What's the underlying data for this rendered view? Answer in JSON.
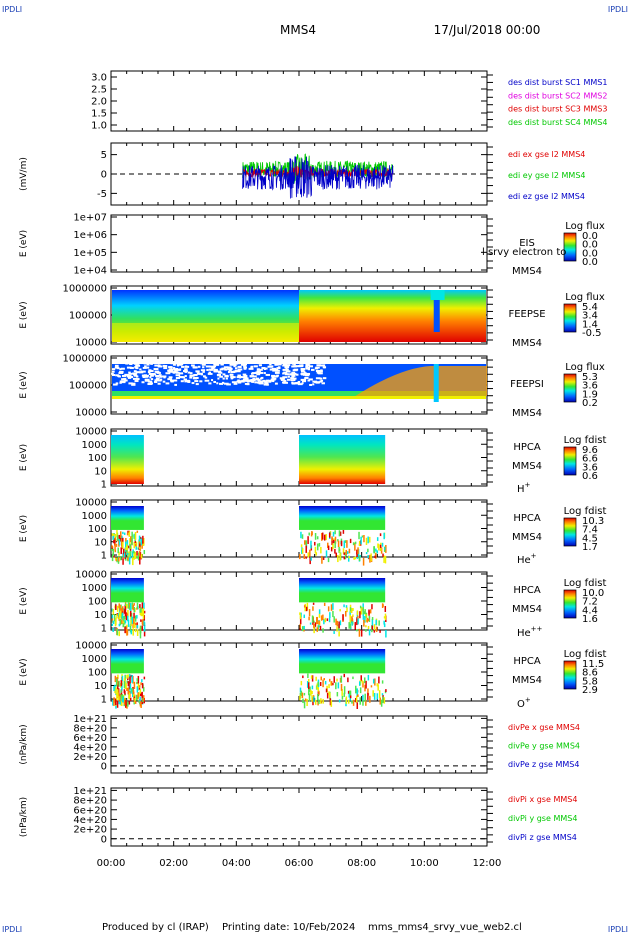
{
  "header": {
    "title": "MMS4",
    "datetime": "17/Jul/2018 00:00",
    "corner_label": "IPDLI"
  },
  "colors": {
    "red": "#e00000",
    "green": "#00c800",
    "blue": "#0000c8",
    "magenta": "#e000e0"
  },
  "footer": {
    "produced_by": "Produced by cl (IRAP)",
    "printing_date": "Printing date: 10/Feb/2024",
    "filename": "mms_mms4_srvy_vue_web2.cl"
  },
  "chart_data": {
    "type": "multi-panel-time-series",
    "x_range": [
      "00:00",
      "12:00"
    ],
    "x_tick_labels": [
      "00:00",
      "02:00",
      "04:00",
      "06:00",
      "08:00",
      "10:00",
      "12:00"
    ],
    "panels": [
      {
        "id": "des",
        "type": "line",
        "y_range": [
          0.75,
          3.25
        ],
        "y_ticks": [
          "3.0",
          "2.5",
          "2.0",
          "1.5",
          "1.0"
        ],
        "legend": [
          {
            "text": "des dist burst SC1 MMS1",
            "color": "#0000c8"
          },
          {
            "text": "des dist burst SC2 MMS2",
            "color": "#e000e0"
          },
          {
            "text": "des dist burst SC3 MMS3",
            "color": "#e00000"
          },
          {
            "text": "des dist burst SC4 MMS4",
            "color": "#00c800"
          }
        ]
      },
      {
        "id": "edi",
        "type": "line",
        "ylabel": "(mV/m)",
        "y_range": [
          -8,
          8
        ],
        "y_ticks": [
          "5",
          "0",
          "-5"
        ],
        "data_range_hours": [
          4.2,
          9.0
        ],
        "legend": [
          {
            "text": "edi ex gse l2 MMS4",
            "color": "#e00000"
          },
          {
            "text": "edi ey gse l2 MMS4",
            "color": "#00c800"
          },
          {
            "text": "edi ez gse l2 MMS4",
            "color": "#0000c8"
          }
        ]
      },
      {
        "id": "eis",
        "type": "spectrogram",
        "ylabel": "E (eV)",
        "y_ticks": [
          "1e+07",
          "1e+06",
          "1e+05",
          "1e+04"
        ],
        "labels": [
          "EIS",
          "MMS4"
        ],
        "overlay_text": "l srvy electron to",
        "colorbar_title": "Log flux",
        "colorbar_ticks": [
          "0.0",
          "0.0",
          "0.0",
          "0.0"
        ]
      },
      {
        "id": "feepse",
        "type": "spectrogram",
        "ylabel": "E (eV)",
        "y_ticks": [
          "1000000",
          "100000",
          "10000"
        ],
        "labels": [
          "FEEPSE",
          "MMS4"
        ],
        "colorbar_title": "Log flux",
        "colorbar_ticks": [
          "5.4",
          "3.4",
          "1.4",
          "-0.5"
        ]
      },
      {
        "id": "feepsi",
        "type": "spectrogram",
        "ylabel": "E (eV)",
        "y_ticks": [
          "1000000",
          "100000",
          "10000"
        ],
        "labels": [
          "FEEPSI",
          "MMS4"
        ],
        "colorbar_title": "Log flux",
        "colorbar_ticks": [
          "5.3",
          "3.6",
          "1.9",
          "0.2"
        ]
      },
      {
        "id": "hpca_h",
        "type": "spectrogram",
        "ylabel": "E (eV)",
        "y_ticks": [
          "10000",
          "1000",
          "100",
          "10",
          "1"
        ],
        "labels": [
          "HPCA",
          "MMS4"
        ],
        "species": "H",
        "species_sup": "+",
        "colorbar_title": "Log fdist",
        "colorbar_ticks": [
          "9.6",
          "6.6",
          "3.6",
          "0.6"
        ]
      },
      {
        "id": "hpca_he",
        "type": "spectrogram",
        "ylabel": "E (eV)",
        "y_ticks": [
          "10000",
          "1000",
          "100",
          "10",
          "1"
        ],
        "labels": [
          "HPCA",
          "MMS4"
        ],
        "species": "He",
        "species_sup": "+",
        "colorbar_title": "Log fdist",
        "colorbar_ticks": [
          "10.3",
          "7.4",
          "4.5",
          "1.7"
        ]
      },
      {
        "id": "hpca_he2",
        "type": "spectrogram",
        "ylabel": "E (eV)",
        "y_ticks": [
          "10000",
          "1000",
          "100",
          "10",
          "1"
        ],
        "labels": [
          "HPCA",
          "MMS4"
        ],
        "species": "He",
        "species_sup": "++",
        "colorbar_title": "Log fdist",
        "colorbar_ticks": [
          "10.0",
          "7.2",
          "4.4",
          "1.6"
        ]
      },
      {
        "id": "hpca_o",
        "type": "spectrogram",
        "ylabel": "E (eV)",
        "y_ticks": [
          "10000",
          "1000",
          "100",
          "10",
          "1"
        ],
        "labels": [
          "HPCA",
          "MMS4"
        ],
        "species": "O",
        "species_sup": "+",
        "colorbar_title": "Log fdist",
        "colorbar_ticks": [
          "11.5",
          "8.6",
          "5.8",
          "2.9"
        ]
      },
      {
        "id": "divpe",
        "type": "line",
        "ylabel": "(nPa/km)",
        "y_range": [
          -0.15,
          1.05
        ],
        "y_ticks": [
          "1e+21",
          "8e+20",
          "6e+20",
          "4e+20",
          "2e+20",
          "0"
        ],
        "legend": [
          {
            "text": "divPe x gse MMS4",
            "color": "#e00000"
          },
          {
            "text": "divPe y gse MMS4",
            "color": "#00c800"
          },
          {
            "text": "divPe z gse MMS4",
            "color": "#0000c8"
          }
        ]
      },
      {
        "id": "divpi",
        "type": "line",
        "ylabel": "(nPa/km)",
        "y_range": [
          -0.15,
          1.05
        ],
        "y_ticks": [
          "1e+21",
          "8e+20",
          "6e+20",
          "4e+20",
          "2e+20",
          "0"
        ],
        "legend": [
          {
            "text": "divPi x gse MMS4",
            "color": "#e00000"
          },
          {
            "text": "divPi y gse MMS4",
            "color": "#00c800"
          },
          {
            "text": "divPi z gse MMS4",
            "color": "#0000c8"
          }
        ]
      }
    ]
  }
}
